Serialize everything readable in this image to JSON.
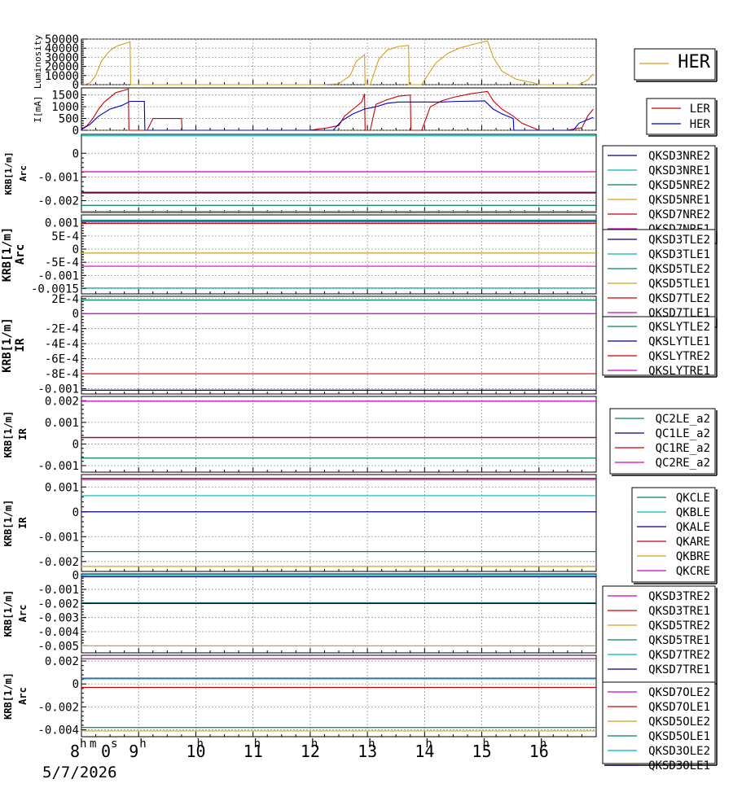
{
  "time_axis": {
    "ticks": [
      "8",
      "9",
      "10",
      "11",
      "12",
      "13",
      "14",
      "15",
      "16"
    ],
    "first_tick_units": [
      "m",
      "0",
      "s"
    ],
    "hour_unit": "h",
    "date": "5/7/2026",
    "range_hours": [
      8,
      17
    ]
  },
  "chart_data": [
    {
      "type": "line",
      "ylabel": "Luminosity",
      "ylim": [
        0,
        50000
      ],
      "yticks": [
        "0",
        "10000",
        "20000",
        "30000",
        "40000",
        "50000"
      ],
      "legend": [
        {
          "name": "HER",
          "color": "#d4a017"
        }
      ],
      "series": [
        {
          "name": "HER",
          "color": "#d4a017",
          "points": [
            [
              8.05,
              0
            ],
            [
              8.15,
              2000
            ],
            [
              8.25,
              10000
            ],
            [
              8.35,
              26000
            ],
            [
              8.45,
              34000
            ],
            [
              8.55,
              40000
            ],
            [
              8.65,
              43000
            ],
            [
              8.75,
              45000
            ],
            [
              8.85,
              47000
            ],
            [
              8.86,
              0
            ],
            [
              12.2,
              0
            ],
            [
              12.5,
              1000
            ],
            [
              12.7,
              10000
            ],
            [
              12.8,
              25000
            ],
            [
              12.95,
              33000
            ],
            [
              12.96,
              0
            ],
            [
              13.05,
              0
            ],
            [
              13.2,
              28000
            ],
            [
              13.35,
              38000
            ],
            [
              13.55,
              42000
            ],
            [
              13.72,
              43000
            ],
            [
              13.73,
              0
            ],
            [
              13.95,
              0
            ],
            [
              14.05,
              10000
            ],
            [
              14.2,
              24000
            ],
            [
              14.4,
              34000
            ],
            [
              14.6,
              40000
            ],
            [
              14.9,
              45000
            ],
            [
              15.1,
              48000
            ],
            [
              15.2,
              30000
            ],
            [
              15.35,
              15000
            ],
            [
              15.6,
              6000
            ],
            [
              15.9,
              2000
            ],
            [
              16.0,
              0
            ],
            [
              16.7,
              0
            ],
            [
              16.85,
              5000
            ],
            [
              16.95,
              12000
            ]
          ]
        }
      ]
    },
    {
      "type": "line",
      "ylabel": "I[mA]",
      "ylim": [
        0,
        1800
      ],
      "yticks": [
        "0",
        "500",
        "1000",
        "1500"
      ],
      "legend": [
        {
          "name": "LER",
          "color": "#cc0000"
        },
        {
          "name": "HER",
          "color": "#0000cc"
        }
      ],
      "series": [
        {
          "name": "LER",
          "color": "#cc0000",
          "points": [
            [
              8.0,
              50
            ],
            [
              8.1,
              200
            ],
            [
              8.2,
              500
            ],
            [
              8.3,
              900
            ],
            [
              8.4,
              1200
            ],
            [
              8.5,
              1400
            ],
            [
              8.6,
              1600
            ],
            [
              8.75,
              1700
            ],
            [
              8.82,
              1750
            ],
            [
              8.83,
              0
            ],
            [
              9.15,
              0
            ],
            [
              9.25,
              500
            ],
            [
              9.75,
              500
            ],
            [
              9.76,
              0
            ],
            [
              12.0,
              0
            ],
            [
              12.3,
              100
            ],
            [
              12.5,
              200
            ],
            [
              12.6,
              600
            ],
            [
              12.75,
              900
            ],
            [
              12.9,
              1200
            ],
            [
              12.95,
              1550
            ],
            [
              12.96,
              0
            ],
            [
              13.05,
              0
            ],
            [
              13.15,
              1100
            ],
            [
              13.35,
              1300
            ],
            [
              13.55,
              1450
            ],
            [
              13.75,
              1500
            ],
            [
              13.76,
              0
            ],
            [
              13.95,
              0
            ],
            [
              14.1,
              1000
            ],
            [
              14.3,
              1250
            ],
            [
              14.5,
              1400
            ],
            [
              14.8,
              1550
            ],
            [
              15.1,
              1650
            ],
            [
              15.2,
              1250
            ],
            [
              15.35,
              900
            ],
            [
              15.55,
              600
            ],
            [
              15.7,
              300
            ],
            [
              16.0,
              0
            ],
            [
              16.5,
              0
            ],
            [
              16.6,
              50
            ],
            [
              16.75,
              100
            ],
            [
              16.85,
              600
            ],
            [
              16.95,
              900
            ]
          ]
        },
        {
          "name": "HER",
          "color": "#0000cc",
          "points": [
            [
              8.0,
              30
            ],
            [
              8.15,
              250
            ],
            [
              8.3,
              600
            ],
            [
              8.5,
              900
            ],
            [
              8.7,
              1050
            ],
            [
              8.85,
              1230
            ],
            [
              9.1,
              1230
            ],
            [
              9.11,
              0
            ],
            [
              12.4,
              0
            ],
            [
              12.55,
              400
            ],
            [
              12.75,
              700
            ],
            [
              12.95,
              900
            ],
            [
              13.15,
              1000
            ],
            [
              13.35,
              1150
            ],
            [
              13.55,
              1200
            ],
            [
              14.0,
              1200
            ],
            [
              14.3,
              1200
            ],
            [
              14.6,
              1230
            ],
            [
              14.9,
              1240
            ],
            [
              15.05,
              1250
            ],
            [
              15.2,
              900
            ],
            [
              15.35,
              700
            ],
            [
              15.55,
              500
            ],
            [
              15.56,
              0
            ],
            [
              16.6,
              0
            ],
            [
              16.7,
              300
            ],
            [
              16.85,
              450
            ],
            [
              16.95,
              550
            ]
          ]
        }
      ]
    },
    {
      "type": "line",
      "ylabel": "KRB[1/m]",
      "subtitle": "Arc",
      "ylim": [
        -0.0025,
        0.0008
      ],
      "yticks": [
        {
          "v": 0,
          "t": "0"
        },
        {
          "v": -0.001,
          "t": "-0.001"
        },
        {
          "v": -0.002,
          "t": "-0.002"
        }
      ],
      "legend": [
        {
          "name": "QKSD3NRE2",
          "color": "#000080"
        },
        {
          "name": "QKSD3NRE1",
          "color": "#00b4b4"
        },
        {
          "name": "QKSD5NRE2",
          "color": "#008060"
        },
        {
          "name": "QKSD5NRE1",
          "color": "#d4a017"
        },
        {
          "name": "QKSD7NRE2",
          "color": "#cc0000"
        },
        {
          "name": "QKSD7NRE1",
          "color": "#cc00cc"
        }
      ],
      "hlines": [
        {
          "v": 0.00074,
          "color": "#00b4b4"
        },
        {
          "v": -0.00078,
          "color": "#cc00cc"
        },
        {
          "v": -0.00165,
          "color": "#000080"
        },
        {
          "v": -0.00168,
          "color": "#cc0000"
        },
        {
          "v": -0.0022,
          "color": "#008060"
        },
        {
          "v": -0.00245,
          "color": "#d4a017"
        }
      ]
    },
    {
      "type": "line",
      "ylabel": "KRB[1/m]",
      "subtitle": "Arc",
      "ylim": [
        -0.0017,
        0.0013
      ],
      "yticks": [
        {
          "v": 0.001,
          "t": "0.001"
        },
        {
          "v": 0.0005,
          "t": "5E-4"
        },
        {
          "v": 0,
          "t": "0"
        },
        {
          "v": -0.0005,
          "t": "-5E-4"
        },
        {
          "v": -0.001,
          "t": "-0.001"
        },
        {
          "v": -0.0015,
          "t": "-0.0015"
        }
      ],
      "legend": [
        {
          "name": "QKSD3TLE2",
          "color": "#000080"
        },
        {
          "name": "QKSD3TLE1",
          "color": "#00b4b4"
        },
        {
          "name": "QKSD5TLE2",
          "color": "#008060"
        },
        {
          "name": "QKSD5TLE1",
          "color": "#d4a017"
        },
        {
          "name": "QKSD7TLE2",
          "color": "#cc0000"
        },
        {
          "name": "QKSD7TLE1",
          "color": "#cc00cc"
        }
      ],
      "hlines": [
        {
          "v": 0.0011,
          "color": "#008060"
        },
        {
          "v": 0.00105,
          "color": "#000080"
        },
        {
          "v": 0.00098,
          "color": "#cc0000"
        },
        {
          "v": -0.00015,
          "color": "#d4a017"
        },
        {
          "v": -0.00065,
          "color": "#cc00cc"
        },
        {
          "v": -0.00148,
          "color": "#00b4b4"
        }
      ]
    },
    {
      "type": "line",
      "ylabel": "KRB[1/m]",
      "subtitle": "IR",
      "ylim": [
        -0.00107,
        0.00023
      ],
      "yticks": [
        {
          "v": 0.0002,
          "t": "2E-4"
        },
        {
          "v": 0,
          "t": "0"
        },
        {
          "v": -0.0002,
          "t": "-2E-4"
        },
        {
          "v": -0.0004,
          "t": "-4E-4"
        },
        {
          "v": -0.0006,
          "t": "-6E-4"
        },
        {
          "v": -0.0008,
          "t": "-8E-4"
        },
        {
          "v": -0.001,
          "t": "-0.001"
        }
      ],
      "legend": [
        {
          "name": "QKSLYTLE2",
          "color": "#008060"
        },
        {
          "name": "QKSLYTLE1",
          "color": "#000080"
        },
        {
          "name": "QKSLYTRE2",
          "color": "#cc0000"
        },
        {
          "name": "QKSLYTRE1",
          "color": "#cc00cc"
        }
      ],
      "hlines": [
        {
          "v": 0.00018,
          "color": "#008060"
        },
        {
          "v": 0.0,
          "color": "#cc00cc"
        },
        {
          "v": -0.0008,
          "color": "#cc0000"
        },
        {
          "v": -0.00102,
          "color": "#000080"
        }
      ]
    },
    {
      "type": "line",
      "ylabel": "KRB[1/m]",
      "subtitle": "IR",
      "ylim": [
        -0.0013,
        0.0022
      ],
      "yticks": [
        {
          "v": 0.002,
          "t": "0.002"
        },
        {
          "v": 0.001,
          "t": "0.001"
        },
        {
          "v": 0,
          "t": "0"
        },
        {
          "v": -0.001,
          "t": "-0.001"
        }
      ],
      "legend": [
        {
          "name": "QC2LE_a2",
          "color": "#008060"
        },
        {
          "name": "QC1LE_a2",
          "color": "#000080"
        },
        {
          "name": "QC1RE_a2",
          "color": "#cc0000"
        },
        {
          "name": "QC2RE_a2",
          "color": "#cc00cc"
        }
      ],
      "hlines": [
        {
          "v": 0.00198,
          "color": "#cc00cc"
        },
        {
          "v": 0.0003,
          "color": "#000080"
        },
        {
          "v": 0.0003,
          "color": "#cc0000"
        },
        {
          "v": -0.00065,
          "color": "#008060"
        }
      ]
    },
    {
      "type": "line",
      "ylabel": "KRB[1/m]",
      "subtitle": "IR",
      "ylim": [
        -0.0024,
        0.0015
      ],
      "yticks": [
        {
          "v": 0.001,
          "t": "0.001"
        },
        {
          "v": 0,
          "t": "0"
        },
        {
          "v": -0.001,
          "t": "-0.001"
        },
        {
          "v": -0.002,
          "t": "-0.002"
        }
      ],
      "legend": [
        {
          "name": "QKCLE",
          "color": "#008060"
        },
        {
          "name": "QKBLE",
          "color": "#00b4b4"
        },
        {
          "name": "QKALE",
          "color": "#000080"
        },
        {
          "name": "QKARE",
          "color": "#cc0000"
        },
        {
          "name": "QKBRE",
          "color": "#d4a017"
        },
        {
          "name": "QKCRE",
          "color": "#cc00cc"
        }
      ],
      "hlines": [
        {
          "v": 0.00135,
          "color": "#cc0000"
        },
        {
          "v": 0.0013,
          "color": "#cc00cc"
        },
        {
          "v": 0.00065,
          "color": "#00b4b4"
        },
        {
          "v": 0.0,
          "color": "#000080"
        },
        {
          "v": -0.0016,
          "color": "#008060"
        },
        {
          "v": -0.0022,
          "color": "#d4a017"
        }
      ]
    },
    {
      "type": "line",
      "ylabel": "KRB[1/m]",
      "subtitle": "Arc",
      "ylim": [
        -0.0055,
        0.0001
      ],
      "yticks": [
        {
          "v": 0,
          "t": "0"
        },
        {
          "v": -0.001,
          "t": "-0.001"
        },
        {
          "v": -0.002,
          "t": "-0.002"
        },
        {
          "v": -0.003,
          "t": "-0.003"
        },
        {
          "v": -0.004,
          "t": "-0.004"
        },
        {
          "v": -0.005,
          "t": "-0.005"
        }
      ],
      "legend": [
        {
          "name": "QKSD3TRE2",
          "color": "#cc00cc"
        },
        {
          "name": "QKSD3TRE1",
          "color": "#cc0000"
        },
        {
          "name": "QKSD5TRE2",
          "color": "#d4a017"
        },
        {
          "name": "QKSD5TRE1",
          "color": "#008060"
        },
        {
          "name": "QKSD7TRE2",
          "color": "#00b4b4"
        },
        {
          "name": "QKSD7TRE1",
          "color": "#000080"
        }
      ],
      "hlines": [
        {
          "v": 0.0,
          "color": "#00b4b4"
        },
        {
          "v": -0.0001,
          "color": "#000080"
        },
        {
          "v": -0.00195,
          "color": "#008060"
        },
        {
          "v": -0.002,
          "color": "#000080"
        },
        {
          "v": -0.005,
          "color": "#d4a017"
        }
      ]
    },
    {
      "type": "line",
      "ylabel": "KRB[1/m]",
      "subtitle": "Arc",
      "ylim": [
        -0.0046,
        0.0025
      ],
      "yticks": [
        {
          "v": 0.002,
          "t": "0.002"
        },
        {
          "v": 0,
          "t": "0"
        },
        {
          "v": -0.002,
          "t": "-0.002"
        },
        {
          "v": -0.004,
          "t": "-0.004"
        }
      ],
      "legend": [
        {
          "name": "QKSD7OLE2",
          "color": "#cc00cc"
        },
        {
          "name": "QKSD7OLE1",
          "color": "#cc0000"
        },
        {
          "name": "QKSD5OLE2",
          "color": "#d4a017"
        },
        {
          "name": "QKSD5OLE1",
          "color": "#008060"
        },
        {
          "name": "QKSD3OLE2",
          "color": "#00b4b4"
        },
        {
          "name": "QKSD3OLE1",
          "color": "#000080"
        }
      ],
      "hlines": [
        {
          "v": 0.0022,
          "color": "#cc00cc"
        },
        {
          "v": 0.0005,
          "color": "#000080"
        },
        {
          "v": 0.00045,
          "color": "#00b4b4"
        },
        {
          "v": -0.0003,
          "color": "#cc0000"
        },
        {
          "v": -0.0038,
          "color": "#008060"
        },
        {
          "v": -0.0041,
          "color": "#d4a017"
        }
      ]
    }
  ]
}
